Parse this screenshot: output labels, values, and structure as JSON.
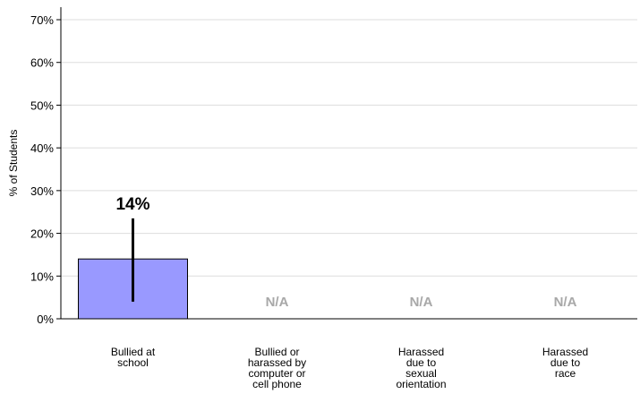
{
  "chart_data": {
    "type": "bar",
    "title": "",
    "ylabel": "% of Students",
    "xlabel": "",
    "ylim": [
      0,
      70
    ],
    "yticks": [
      0,
      10,
      20,
      30,
      40,
      50,
      60,
      70
    ],
    "ytick_labels": [
      "0%",
      "10%",
      "20%",
      "30%",
      "40%",
      "50%",
      "60%",
      "70%"
    ],
    "grid": true,
    "categories": [
      [
        "Bullied at",
        "school"
      ],
      [
        "Bullied or",
        "harassed by",
        "computer or",
        "cell phone"
      ],
      [
        "Harassed",
        "due to",
        "sexual",
        "orientation"
      ],
      [
        "Harassed",
        "due to",
        "race"
      ]
    ],
    "values": [
      14,
      null,
      null,
      null
    ],
    "error_bars": [
      [
        4,
        23.5
      ],
      null,
      null,
      null
    ],
    "value_labels": [
      "14%",
      "N/A",
      "N/A",
      "N/A"
    ],
    "bar_color": "#9999ff",
    "na_color": "#a8a8a8"
  }
}
